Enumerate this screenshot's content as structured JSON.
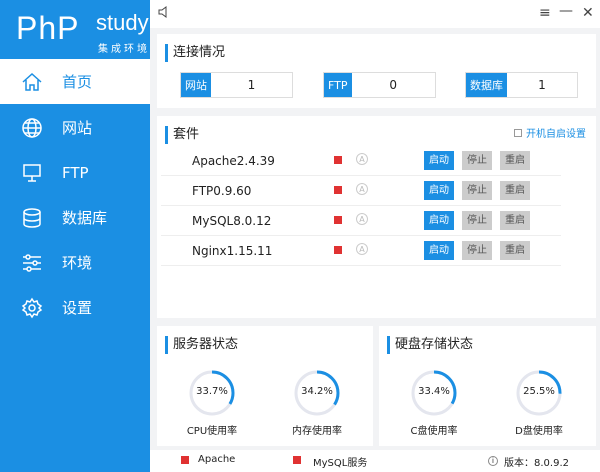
{
  "logo": {
    "php": "PhP",
    "study": "study",
    "sub": "集成环境"
  },
  "sidebar": {
    "items": [
      {
        "label": "首页",
        "icon": "home-icon",
        "active": true
      },
      {
        "label": "网站",
        "icon": "globe-icon"
      },
      {
        "label": "FTP",
        "icon": "monitor-icon"
      },
      {
        "label": "数据库",
        "icon": "database-icon"
      },
      {
        "label": "环境",
        "icon": "sliders-icon"
      },
      {
        "label": "设置",
        "icon": "gear-icon"
      }
    ]
  },
  "titlebar": {
    "menu": "≡",
    "minimize": "—",
    "close": "✕"
  },
  "connection": {
    "title": "连接情况",
    "items": [
      {
        "label": "网站",
        "value": "1"
      },
      {
        "label": "FTP",
        "value": "0"
      },
      {
        "label": "数据库",
        "value": "1"
      }
    ]
  },
  "suite": {
    "title": "套件",
    "autostart": "开机自启设置",
    "start": "启动",
    "stop": "停止",
    "restart": "重启",
    "rows": [
      {
        "name": "Apache2.4.39"
      },
      {
        "name": "FTP0.9.60"
      },
      {
        "name": "MySQL8.0.12"
      },
      {
        "name": "Nginx1.15.11"
      }
    ]
  },
  "server": {
    "title": "服务器状态",
    "gauges": [
      {
        "pct": "33.7%",
        "value": 33.7,
        "label": "CPU使用率"
      },
      {
        "pct": "34.2%",
        "value": 34.2,
        "label": "内存使用率"
      }
    ]
  },
  "disk": {
    "title": "硬盘存储状态",
    "gauges": [
      {
        "pct": "33.4%",
        "value": 33.4,
        "label": "C盘使用率"
      },
      {
        "pct": "25.5%",
        "value": 25.5,
        "label": "D盘使用率"
      }
    ]
  },
  "footer": {
    "apache": "Apache",
    "mysql": "MySQL服务",
    "version": "版本：8.0.9.2"
  },
  "colors": {
    "accent": "#1b8fe3",
    "stopped": "#e03232"
  }
}
